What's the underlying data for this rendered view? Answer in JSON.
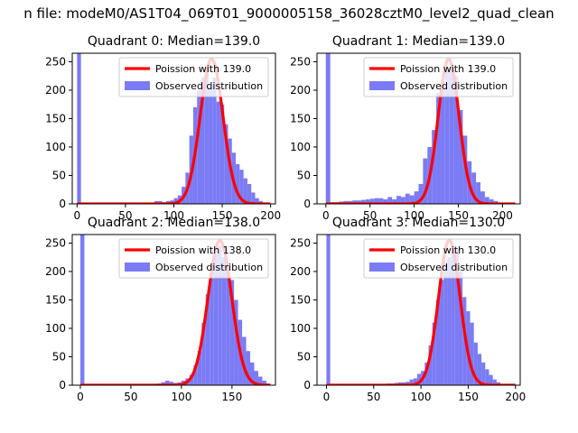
{
  "figure": {
    "suptitle": "n file: modeM0/AS1T04_069T01_9000005158_36028cztM0_level2_quad_clean"
  },
  "colors": {
    "histogram": "#7b7bf5",
    "poisson": "#ff0000",
    "axes": "#000000",
    "background": "#ffffff"
  },
  "chart_data": [
    {
      "type": "bar",
      "title": "Quadrant 0: Median=139.0",
      "xlim": [
        -5,
        205
      ],
      "ylim": [
        0,
        265
      ],
      "xticks": [
        0,
        50,
        100,
        150,
        200
      ],
      "yticks": [
        0,
        50,
        100,
        150,
        200,
        250
      ],
      "series": [
        {
          "name": "Poission with 139.0",
          "kind": "line",
          "mean": 139.0,
          "peak": 255
        },
        {
          "name": "Observed distribution",
          "kind": "histogram",
          "bin_width": 4,
          "bins": [
            {
              "x": 0,
              "count": 265
            },
            {
              "x": 80,
              "count": 5
            },
            {
              "x": 84,
              "count": 5
            },
            {
              "x": 88,
              "count": 3
            },
            {
              "x": 92,
              "count": 5
            },
            {
              "x": 96,
              "count": 6
            },
            {
              "x": 100,
              "count": 10
            },
            {
              "x": 104,
              "count": 15
            },
            {
              "x": 108,
              "count": 30
            },
            {
              "x": 112,
              "count": 55
            },
            {
              "x": 116,
              "count": 120
            },
            {
              "x": 120,
              "count": 170
            },
            {
              "x": 124,
              "count": 200
            },
            {
              "x": 128,
              "count": 222
            },
            {
              "x": 132,
              "count": 240
            },
            {
              "x": 136,
              "count": 205
            },
            {
              "x": 140,
              "count": 222
            },
            {
              "x": 144,
              "count": 180
            },
            {
              "x": 148,
              "count": 175
            },
            {
              "x": 152,
              "count": 140
            },
            {
              "x": 156,
              "count": 115
            },
            {
              "x": 160,
              "count": 90
            },
            {
              "x": 164,
              "count": 70
            },
            {
              "x": 168,
              "count": 60
            },
            {
              "x": 172,
              "count": 45
            },
            {
              "x": 176,
              "count": 35
            },
            {
              "x": 180,
              "count": 20
            },
            {
              "x": 184,
              "count": 10
            },
            {
              "x": 188,
              "count": 5
            },
            {
              "x": 192,
              "count": 2
            }
          ]
        }
      ],
      "legend": [
        "Poission with 139.0",
        "Observed distribution"
      ],
      "legend_loc": "upper right"
    },
    {
      "type": "bar",
      "title": "Quadrant 1: Median=139.0",
      "xlim": [
        -10,
        220
      ],
      "ylim": [
        0,
        265
      ],
      "xticks": [
        0,
        50,
        100,
        150,
        200
      ],
      "yticks": [
        0,
        50,
        100,
        150,
        200,
        250
      ],
      "series": [
        {
          "name": "Poission with 139.0",
          "kind": "line",
          "mean": 139.0,
          "peak": 255
        },
        {
          "name": "Observed distribution",
          "kind": "histogram",
          "bin_width": 5,
          "bins": [
            {
              "x": 0,
              "count": 265
            },
            {
              "x": 5,
              "count": 3
            },
            {
              "x": 10,
              "count": 3
            },
            {
              "x": 15,
              "count": 4
            },
            {
              "x": 20,
              "count": 5
            },
            {
              "x": 25,
              "count": 5
            },
            {
              "x": 30,
              "count": 6
            },
            {
              "x": 35,
              "count": 6
            },
            {
              "x": 40,
              "count": 7
            },
            {
              "x": 45,
              "count": 8
            },
            {
              "x": 50,
              "count": 9
            },
            {
              "x": 55,
              "count": 10
            },
            {
              "x": 60,
              "count": 10
            },
            {
              "x": 65,
              "count": 8
            },
            {
              "x": 70,
              "count": 12
            },
            {
              "x": 75,
              "count": 8
            },
            {
              "x": 80,
              "count": 14
            },
            {
              "x": 85,
              "count": 12
            },
            {
              "x": 90,
              "count": 18
            },
            {
              "x": 95,
              "count": 15
            },
            {
              "x": 100,
              "count": 22
            },
            {
              "x": 105,
              "count": 35
            },
            {
              "x": 110,
              "count": 80
            },
            {
              "x": 115,
              "count": 100
            },
            {
              "x": 120,
              "count": 130
            },
            {
              "x": 125,
              "count": 195
            },
            {
              "x": 130,
              "count": 215
            },
            {
              "x": 135,
              "count": 235
            },
            {
              "x": 140,
              "count": 240
            },
            {
              "x": 145,
              "count": 225
            },
            {
              "x": 150,
              "count": 165
            },
            {
              "x": 155,
              "count": 120
            },
            {
              "x": 160,
              "count": 75
            },
            {
              "x": 165,
              "count": 55
            },
            {
              "x": 170,
              "count": 38
            },
            {
              "x": 175,
              "count": 22
            },
            {
              "x": 180,
              "count": 12
            },
            {
              "x": 185,
              "count": 8
            },
            {
              "x": 190,
              "count": 5
            },
            {
              "x": 195,
              "count": 2
            }
          ]
        }
      ],
      "legend": [
        "Poission with 139.0",
        "Observed distribution"
      ],
      "legend_loc": "upper right"
    },
    {
      "type": "bar",
      "title": "Quadrant 2: Median=138.0",
      "xlim": [
        -8,
        193
      ],
      "ylim": [
        0,
        265
      ],
      "xticks": [
        0,
        50,
        100,
        150
      ],
      "yticks": [
        0,
        50,
        100,
        150,
        200,
        250
      ],
      "series": [
        {
          "name": "Poission with 138.0",
          "kind": "line",
          "mean": 138.0,
          "peak": 255
        },
        {
          "name": "Observed distribution",
          "kind": "histogram",
          "bin_width": 4,
          "bins": [
            {
              "x": 0,
              "count": 265
            },
            {
              "x": 76,
              "count": 3
            },
            {
              "x": 80,
              "count": 5
            },
            {
              "x": 84,
              "count": 8
            },
            {
              "x": 88,
              "count": 6
            },
            {
              "x": 92,
              "count": 4
            },
            {
              "x": 96,
              "count": 5
            },
            {
              "x": 100,
              "count": 8
            },
            {
              "x": 104,
              "count": 12
            },
            {
              "x": 108,
              "count": 18
            },
            {
              "x": 112,
              "count": 35
            },
            {
              "x": 116,
              "count": 60
            },
            {
              "x": 120,
              "count": 110
            },
            {
              "x": 124,
              "count": 160
            },
            {
              "x": 128,
              "count": 200
            },
            {
              "x": 132,
              "count": 230
            },
            {
              "x": 136,
              "count": 245
            },
            {
              "x": 140,
              "count": 225
            },
            {
              "x": 144,
              "count": 215
            },
            {
              "x": 148,
              "count": 185
            },
            {
              "x": 152,
              "count": 150
            },
            {
              "x": 156,
              "count": 115
            },
            {
              "x": 160,
              "count": 85
            },
            {
              "x": 164,
              "count": 60
            },
            {
              "x": 168,
              "count": 40
            },
            {
              "x": 172,
              "count": 25
            },
            {
              "x": 176,
              "count": 15
            },
            {
              "x": 180,
              "count": 8
            },
            {
              "x": 184,
              "count": 3
            }
          ]
        }
      ],
      "legend": [
        "Poission with 138.0",
        "Observed distribution"
      ],
      "legend_loc": "upper right"
    },
    {
      "type": "bar",
      "title": "Quadrant 3: Median=130.0",
      "xlim": [
        -10,
        205
      ],
      "ylim": [
        0,
        265
      ],
      "xticks": [
        0,
        50,
        100,
        150,
        200
      ],
      "yticks": [
        0,
        50,
        100,
        150,
        200,
        250
      ],
      "series": [
        {
          "name": "Poission with 130.0",
          "kind": "line",
          "mean": 130.0,
          "peak": 255
        },
        {
          "name": "Observed distribution",
          "kind": "histogram",
          "bin_width": 4,
          "bins": [
            {
              "x": 0,
              "count": 265
            },
            {
              "x": 56,
              "count": 2
            },
            {
              "x": 60,
              "count": 2
            },
            {
              "x": 64,
              "count": 3
            },
            {
              "x": 68,
              "count": 3
            },
            {
              "x": 72,
              "count": 4
            },
            {
              "x": 76,
              "count": 5
            },
            {
              "x": 80,
              "count": 5
            },
            {
              "x": 84,
              "count": 6
            },
            {
              "x": 88,
              "count": 10
            },
            {
              "x": 92,
              "count": 12
            },
            {
              "x": 96,
              "count": 20
            },
            {
              "x": 100,
              "count": 25
            },
            {
              "x": 104,
              "count": 40
            },
            {
              "x": 108,
              "count": 70
            },
            {
              "x": 112,
              "count": 110
            },
            {
              "x": 116,
              "count": 150
            },
            {
              "x": 120,
              "count": 185
            },
            {
              "x": 124,
              "count": 215
            },
            {
              "x": 128,
              "count": 225
            },
            {
              "x": 132,
              "count": 235
            },
            {
              "x": 136,
              "count": 240
            },
            {
              "x": 140,
              "count": 200
            },
            {
              "x": 144,
              "count": 155
            },
            {
              "x": 148,
              "count": 130
            },
            {
              "x": 152,
              "count": 110
            },
            {
              "x": 156,
              "count": 75
            },
            {
              "x": 160,
              "count": 55
            },
            {
              "x": 164,
              "count": 40
            },
            {
              "x": 168,
              "count": 28
            },
            {
              "x": 172,
              "count": 18
            },
            {
              "x": 176,
              "count": 10
            },
            {
              "x": 180,
              "count": 5
            },
            {
              "x": 184,
              "count": 2
            }
          ]
        }
      ],
      "legend": [
        "Poission with 130.0",
        "Observed distribution"
      ],
      "legend_loc": "upper right"
    }
  ]
}
